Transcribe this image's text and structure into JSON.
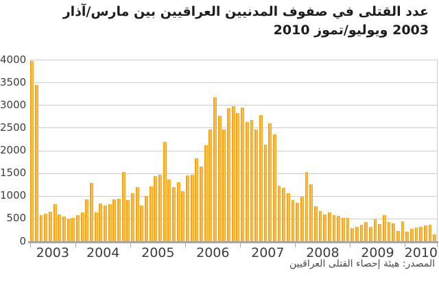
{
  "title": {
    "line1": "عدد القتلى في صفوف المدنيين العراقيين بين مارس/آذار",
    "line2": "2003 ويوليو/تموز 2010"
  },
  "source": "المصدر: هيئة إحصاء القتلى العراقيين",
  "chart_data": {
    "type": "bar",
    "title": "عدد القتلى في صفوف المدنيين العراقيين بين مارس/آذار 2003 ويوليو/تموز 2010",
    "source": "المصدر: هيئة إحصاء القتلى العراقيين",
    "xlabel": "",
    "ylabel": "",
    "ylim": [
      0,
      4000
    ],
    "ytick_interval": 500,
    "ytick_labels": [
      "0",
      "500",
      "1000",
      "1500",
      "2000",
      "2500",
      "3000",
      "3500",
      "4000"
    ],
    "x_year_labels": [
      "2003",
      "2004",
      "2005",
      "2006",
      "2007",
      "2008",
      "2009",
      "2010"
    ],
    "start_month": "2003-03",
    "end_month": "2010-07",
    "grid": true,
    "legend": false,
    "bar_color_main": "#F7A51C",
    "bar_color_highlight": "#FFC85C",
    "bar_color_edge": "#EF980E",
    "gridline_color": "#CDCDCD",
    "axis_color": "#A6A6A6",
    "values_by_year": {
      "2003": [
        3975,
        3435,
        580,
        605,
        655,
        810,
        590,
        550,
        495,
        520
      ],
      "2004": [
        570,
        630,
        925,
        1290,
        630,
        825,
        785,
        810,
        925,
        935,
        1530,
        910
      ],
      "2005": [
        1060,
        1190,
        785,
        995,
        1210,
        1440,
        1470,
        2190,
        1355,
        1200,
        1305,
        1100
      ],
      "2006": [
        1450,
        1460,
        1820,
        1640,
        2120,
        2460,
        3170,
        2770,
        2460,
        2930,
        2980,
        2830
      ],
      "2007": [
        2950,
        2630,
        2670,
        2460,
        2780,
        2130,
        2590,
        2360,
        1230,
        1180,
        1050,
        900
      ],
      "2008": [
        840,
        975,
        1530,
        1250,
        770,
        670,
        590,
        630,
        580,
        555,
        520,
        510
      ],
      "2009": [
        290,
        320,
        360,
        430,
        320,
        480,
        380,
        580,
        430,
        395,
        225,
        445
      ],
      "2010": [
        215,
        270,
        300,
        320,
        355,
        370,
        150
      ]
    },
    "first_month_of_first_year": 3
  }
}
